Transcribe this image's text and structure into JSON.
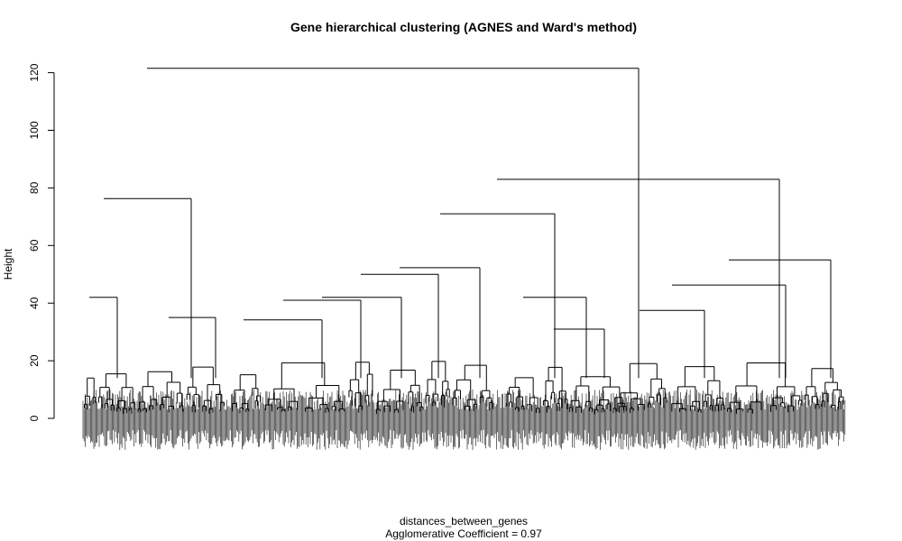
{
  "chart_data": {
    "type": "dendrogram",
    "title": "Gene hierarchical clustering (AGNES and Ward's method)",
    "xlabel": "distances_between_genes",
    "sub": "Agglomerative Coefficient =  0.97",
    "ylabel": "Height",
    "ylim": [
      -10,
      122
    ],
    "yticks": [
      0,
      20,
      40,
      60,
      80,
      100,
      120
    ],
    "grid": false,
    "legend": "none",
    "colors": {
      "line": "#000000",
      "leaf_mass": "#2b2b2b"
    },
    "upper_merges": [
      {
        "height": 121.5,
        "left": "A",
        "right": "B"
      },
      {
        "height": 76.3,
        "left": "A1",
        "right": "A2"
      },
      {
        "height": 83.0,
        "left": "B1",
        "right": "B2"
      },
      {
        "height": 71.0,
        "left": "B1a",
        "right": "B1b"
      },
      {
        "height": 55.0,
        "left": "B2a",
        "right": "B2b"
      },
      {
        "height": 52.3,
        "left": "B1a1",
        "right": "B1a2"
      },
      {
        "height": 50.0,
        "left": "B1a1a",
        "right": "B1a1b"
      },
      {
        "height": 46.3,
        "left": "B2a1",
        "right": "B2a2"
      },
      {
        "height": 42.0,
        "left": "A1a",
        "right": "A1b"
      },
      {
        "height": 42.0,
        "left": "B1b1",
        "right": "B1b2"
      },
      {
        "height": 42.0,
        "left": "B1a1a1",
        "right": "B1a1a2"
      },
      {
        "height": 41.0,
        "left": "B1a1a1a",
        "right": "B1a1a1b"
      },
      {
        "height": 37.5,
        "left": "B2a1a",
        "right": "B2a1b"
      },
      {
        "height": 35.0,
        "left": "A2a",
        "right": "A2b"
      },
      {
        "height": 34.2,
        "left": "B1a1a1a1",
        "right": "B1a1a1a2"
      },
      {
        "height": 31.0,
        "left": "B1b2a",
        "right": "B1b2b"
      }
    ]
  }
}
